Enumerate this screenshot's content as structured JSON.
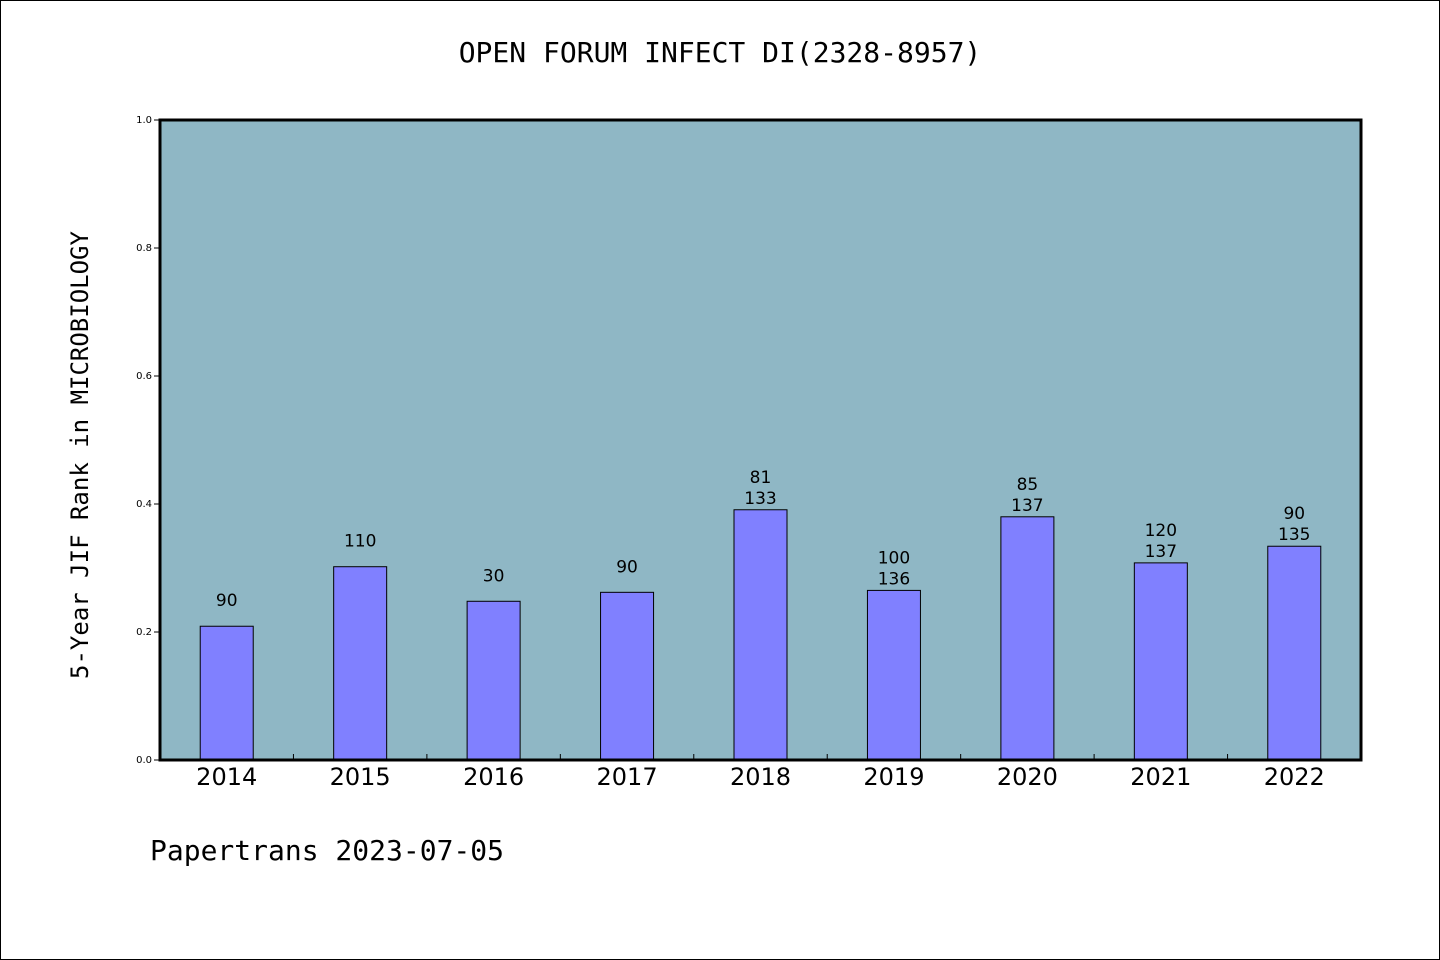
{
  "chart_data": {
    "type": "bar",
    "title": "OPEN FORUM INFECT DI(2328-8957)",
    "xlabel": "",
    "ylabel": "5-Year JIF Rank in MICROBIOLOGY",
    "ylim": [
      0,
      1.0
    ],
    "yticks": [
      "0.0",
      "0.2",
      "0.4",
      "0.6",
      "0.8",
      "1.0"
    ],
    "categories": [
      "2014",
      "2015",
      "2016",
      "2017",
      "2018",
      "2019",
      "2020",
      "2021",
      "2022"
    ],
    "values": [
      0.209,
      0.302,
      0.248,
      0.262,
      0.391,
      0.265,
      0.38,
      0.308,
      0.334
    ],
    "labels": [
      [
        "90"
      ],
      [
        "110"
      ],
      [
        "30"
      ],
      [
        "90"
      ],
      [
        "81",
        "133"
      ],
      [
        "100",
        "136"
      ],
      [
        "85",
        "137"
      ],
      [
        "120",
        "137"
      ],
      [
        "90",
        "135"
      ]
    ],
    "grid": false,
    "colors": {
      "background": "#8fb7c5",
      "bar": "#8080ff"
    }
  },
  "footer": "Papertrans 2023-07-05"
}
